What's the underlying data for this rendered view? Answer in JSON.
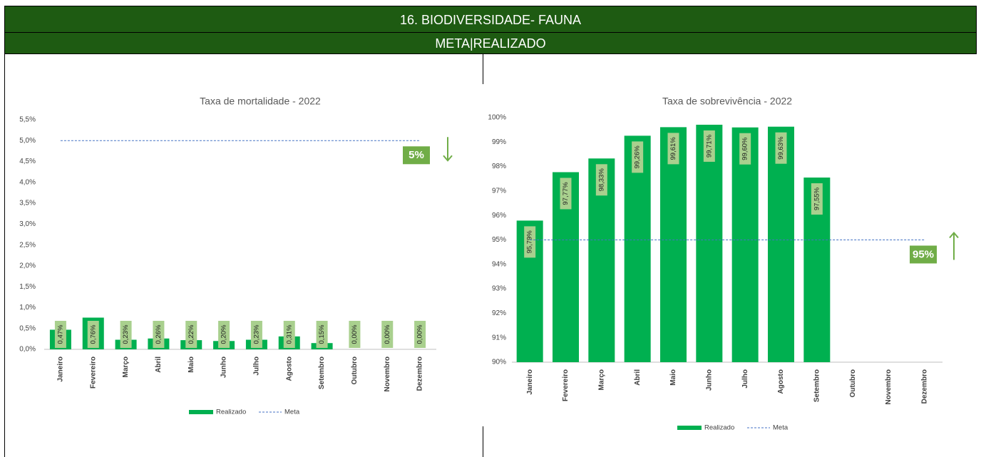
{
  "header": {
    "title": "16.  BIODIVERSIDADE- FAUNA",
    "subtitle": "META|REALIZADO"
  },
  "chart_data": [
    {
      "type": "bar",
      "title": "Taxa de mortalidade - 2022",
      "categories": [
        "Janeiro",
        "Fevereiro",
        "Março",
        "Abril",
        "Maio",
        "Junho",
        "Julho",
        "Agosto",
        "Setembro",
        "Outubro",
        "Novembro",
        "Dezembro"
      ],
      "series": [
        {
          "name": "Realizado",
          "color": "#00b050",
          "values": [
            0.47,
            0.76,
            0.23,
            0.26,
            0.22,
            0.2,
            0.23,
            0.31,
            0.15,
            0.0,
            0.0,
            0.0
          ],
          "value_labels": [
            "0,47%",
            "0,76%",
            "0,23%",
            "0,26%",
            "0,22%",
            "0,20%",
            "0,23%",
            "0,31%",
            "0,15%",
            "0,00%",
            "0,00%",
            "0,00%"
          ]
        },
        {
          "name": "Meta",
          "color": "#4472c4",
          "values": [
            5,
            5,
            5,
            5,
            5,
            5,
            5,
            5,
            5,
            5,
            5,
            5
          ]
        }
      ],
      "ylim": [
        0,
        5.5
      ],
      "yticks": [
        {
          "value": 0,
          "label": "0,0%"
        },
        {
          "value": 0.5,
          "label": "0,5%"
        },
        {
          "value": 1,
          "label": "1,0%"
        },
        {
          "value": 1.5,
          "label": "1,5%"
        },
        {
          "value": 2,
          "label": "2,0%"
        },
        {
          "value": 2.5,
          "label": "2,5%"
        },
        {
          "value": 3,
          "label": "3,0%"
        },
        {
          "value": 3.5,
          "label": "3,5%"
        },
        {
          "value": 4,
          "label": "4,0%"
        },
        {
          "value": 4.5,
          "label": "4,5%"
        },
        {
          "value": 5,
          "label": "5,0%"
        },
        {
          "value": 5.5,
          "label": "5,5%"
        }
      ],
      "grid": false,
      "legend": "bottom",
      "annotation": {
        "text": "5%",
        "value": 5,
        "direction": "down",
        "color": "#70ad47"
      }
    },
    {
      "type": "bar",
      "title": "Taxa de sobrevivência - 2022",
      "categories": [
        "Janeiro",
        "Fevereiro",
        "Março",
        "Abril",
        "Maio",
        "Junho",
        "Julho",
        "Agosto",
        "Setembro",
        "Outubro",
        "Novembro",
        "Dezembro"
      ],
      "series": [
        {
          "name": "Realizado",
          "color": "#00b050",
          "values": [
            95.79,
            97.77,
            98.33,
            99.26,
            99.61,
            99.71,
            99.6,
            99.63,
            97.55,
            null,
            null,
            null
          ],
          "value_labels": [
            "95,79%",
            "97,77%",
            "98,33%",
            "99,26%",
            "99,61%",
            "99,71%",
            "99,60%",
            "99,63%",
            "97,55%",
            null,
            null,
            null
          ]
        },
        {
          "name": "Meta",
          "color": "#4472c4",
          "values": [
            95,
            95,
            95,
            95,
            95,
            95,
            95,
            95,
            95,
            95,
            95,
            95
          ]
        }
      ],
      "ylim": [
        90,
        100
      ],
      "yticks": [
        {
          "value": 90,
          "label": "90%"
        },
        {
          "value": 91,
          "label": "91%"
        },
        {
          "value": 92,
          "label": "92%"
        },
        {
          "value": 93,
          "label": "93%"
        },
        {
          "value": 94,
          "label": "94%"
        },
        {
          "value": 95,
          "label": "95%"
        },
        {
          "value": 96,
          "label": "96%"
        },
        {
          "value": 97,
          "label": "97%"
        },
        {
          "value": 98,
          "label": "98%"
        },
        {
          "value": 99,
          "label": "99%"
        },
        {
          "value": 100,
          "label": "100%"
        }
      ],
      "grid": false,
      "legend": "bottom",
      "annotation": {
        "text": "95%",
        "value": 95,
        "direction": "up",
        "color": "#70ad47"
      }
    }
  ]
}
